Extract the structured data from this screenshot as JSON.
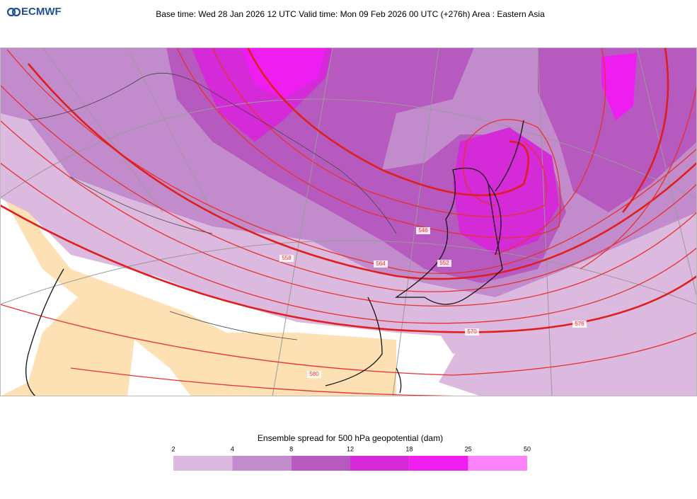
{
  "header": {
    "logo": "ECMWF",
    "title": "Base time: Wed 28 Jan 2026 12 UTC Valid time: Mon 09 Feb 2026 00 UTC (+276h) Area : Eastern Asia"
  },
  "contour_labels": [
    546,
    552,
    558,
    564,
    570,
    576,
    580
  ],
  "legend": {
    "title": "Ensemble spread for 500 hPa geopotential (dam)",
    "bounds": [
      2,
      4,
      8,
      12,
      18,
      25,
      50
    ],
    "colors": [
      "#dcb9de",
      "#c28bcc",
      "#b65abf",
      "#d42ad8",
      "#ee1ef0",
      "#fb82fb"
    ]
  }
}
